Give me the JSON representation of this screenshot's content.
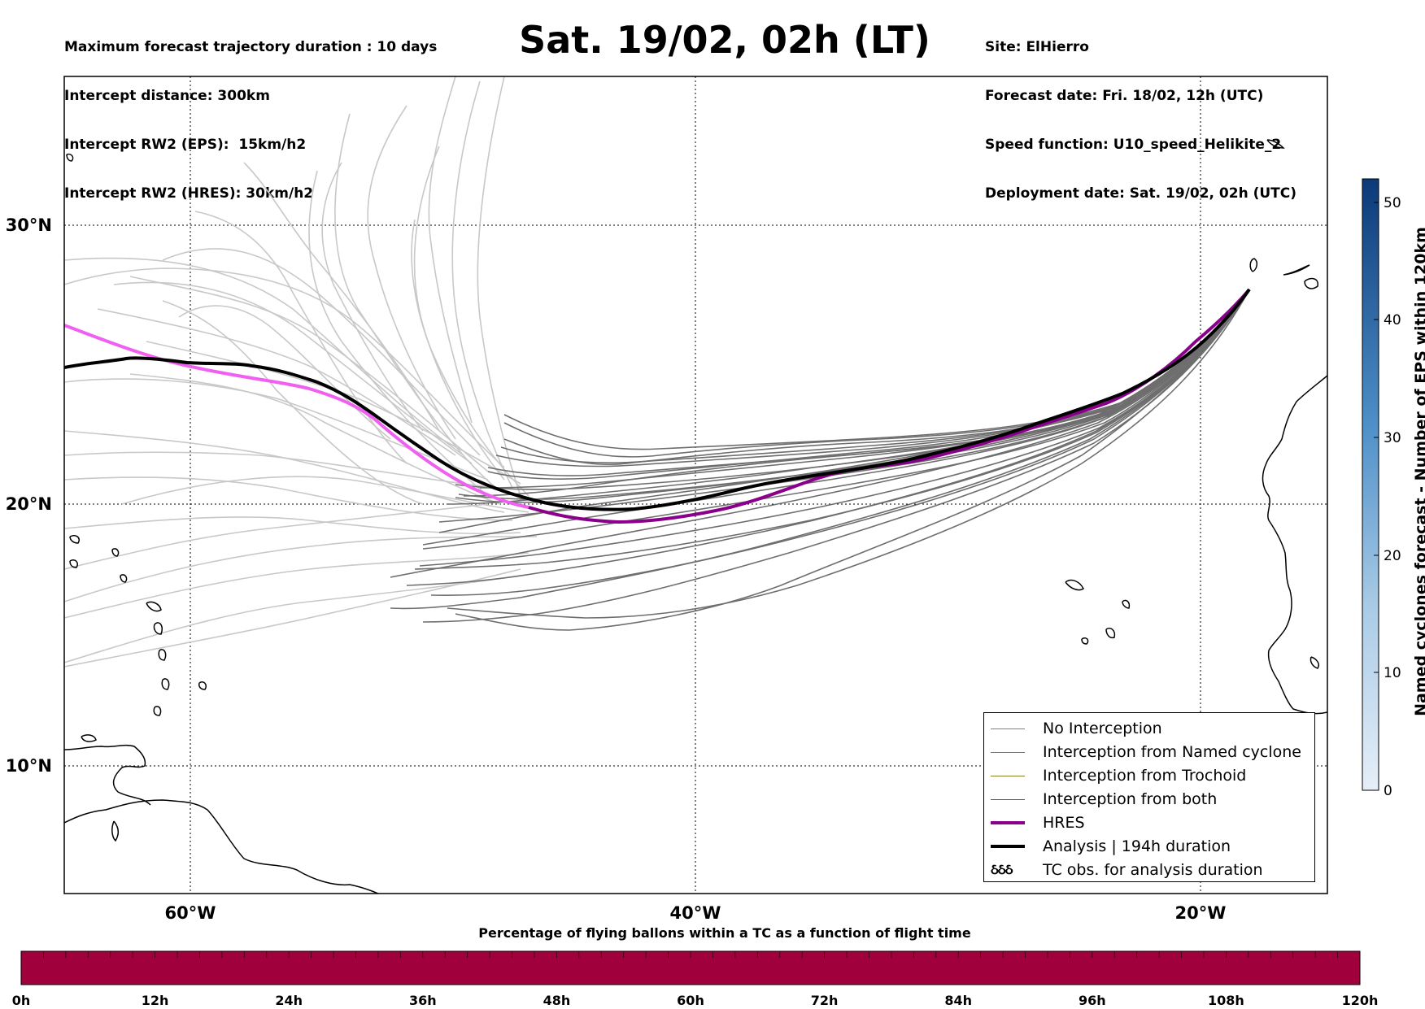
{
  "header_left": [
    "Maximum forecast trajectory duration : 10 days",
    "Intercept distance: 300km",
    "Intercept RW2 (EPS):  15km/h2",
    "Intercept RW2 (HRES): 30km/h2"
  ],
  "title": "Sat. 19/02, 02h (LT)",
  "header_right": [
    "Site: ElHierro",
    "Forecast date: Fri. 18/02, 12h (UTC)",
    "Speed function: U10_speed_Helikite_2",
    "Deployment date: Sat. 19/02, 02h (UTC)"
  ],
  "map": {
    "lon_ticks": [
      "60°W",
      "40°W",
      "20°W"
    ],
    "lat_ticks": [
      "30°N",
      "20°N",
      "10°N"
    ],
    "colors": {
      "no_interception": "#6e6e6e",
      "eps_past": "#c8c8c8",
      "hres_early": "#f060f0",
      "hres": "#8b008b",
      "analysis": "#000000"
    }
  },
  "legend": {
    "items": [
      {
        "label": "No Interception",
        "color": "#808080",
        "width": 1.2,
        "icon": "line"
      },
      {
        "label": "Interception from Named cyclone",
        "color": "#e05020",
        "width": 1.2,
        "icon": "line"
      },
      {
        "label": "Interception from Trochoid",
        "color": "#808020",
        "width": 1.2,
        "icon": "line"
      },
      {
        "label": "Interception from both",
        "color": "#208020",
        "width": 1.2,
        "icon": "line"
      },
      {
        "label": "HRES",
        "color": "#8b008b",
        "width": 4,
        "icon": "line"
      },
      {
        "label": "Analysis | 194h duration",
        "color": "#000000",
        "width": 4,
        "icon": "line"
      },
      {
        "label": "TC obs. for analysis duration",
        "color": "#000000",
        "width": 0,
        "icon": "cyclone-symbols",
        "symbol": "ઠઠઠ"
      }
    ]
  },
  "colorbar_vertical": {
    "title": "Named cyclones forecast - Number of EPS within 120km",
    "ticks": [
      "0",
      "10",
      "20",
      "30",
      "40",
      "50"
    ],
    "range": [
      0,
      52
    ],
    "color_low": "#e6eef8",
    "color_high": "#0b3a78"
  },
  "colorbar_horizontal": {
    "title": "Percentage of flying ballons within a TC as a function of flight time",
    "ticks": [
      "0h",
      "12h",
      "24h",
      "36h",
      "48h",
      "60h",
      "72h",
      "84h",
      "96h",
      "108h",
      "120h"
    ],
    "color": "#a0003c"
  }
}
